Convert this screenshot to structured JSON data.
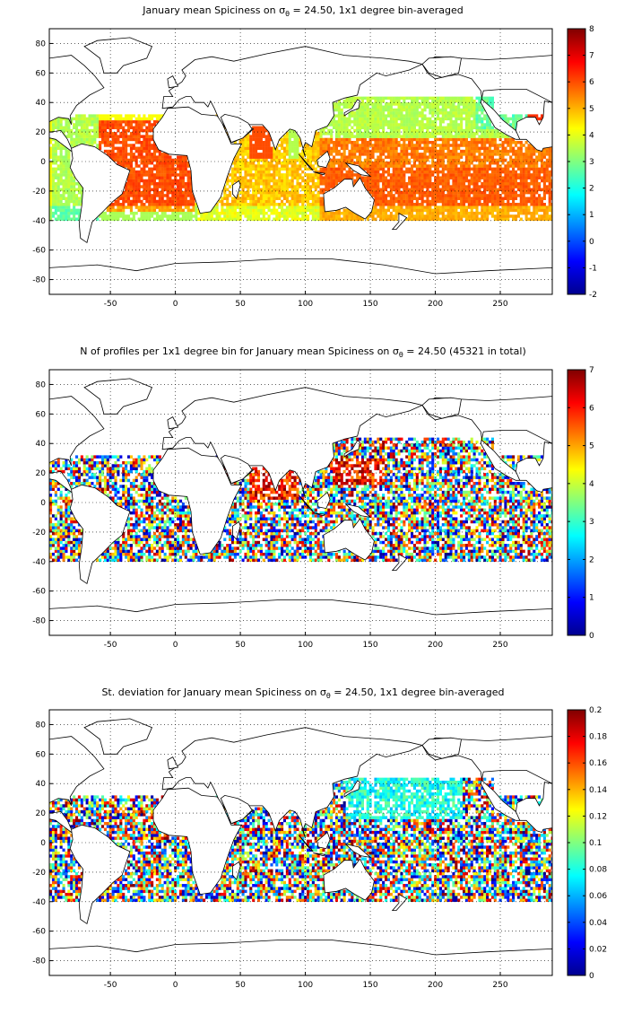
{
  "panels": [
    {
      "title_pre": "January mean Spiciness on σ",
      "title_sub": "θ",
      "title_post": " = 24.50, 1x1 degree bin-averaged",
      "colorbar": {
        "min": -2,
        "max": 8,
        "ticks": [
          "-2",
          "-1",
          "0",
          "1",
          "2",
          "3",
          "4",
          "5",
          "6",
          "7",
          "8"
        ]
      },
      "field": "mean_spiciness"
    },
    {
      "title_pre": "N of profiles per 1x1 degree bin for January mean Spiciness on σ",
      "title_sub": "θ",
      "title_post": " = 24.50 (45321 in total)",
      "colorbar": {
        "min": 0,
        "max": 7,
        "ticks": [
          "0",
          "1",
          "2",
          "3",
          "4",
          "5",
          "6",
          "7"
        ]
      },
      "field": "profile_count"
    },
    {
      "title_pre": "St. deviation for January mean Spiciness on σ",
      "title_sub": "θ",
      "title_post": " = 24.50, 1x1 degree bin-averaged",
      "colorbar": {
        "min": 0,
        "max": 0.2,
        "ticks": [
          "0",
          "0.02",
          "0.04",
          "0.06",
          "0.08",
          "0.1",
          "0.12",
          "0.14",
          "0.16",
          "0.18",
          "0.2"
        ]
      },
      "field": "std_spiciness"
    }
  ],
  "axes": {
    "x_ticks": [
      "-50",
      "0",
      "50",
      "100",
      "150",
      "200",
      "250"
    ],
    "y_ticks": [
      "80",
      "60",
      "40",
      "20",
      "0",
      "-20",
      "-40",
      "-60",
      "-80"
    ]
  },
  "colormap": "jet",
  "grid": true
}
